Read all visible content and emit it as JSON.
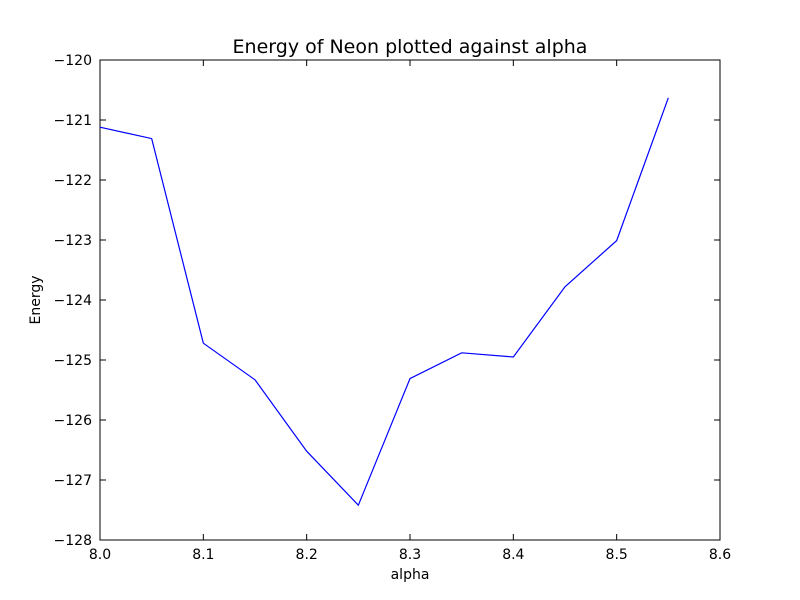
{
  "chart_data": {
    "type": "line",
    "title": "Energy of Neon plotted against alpha",
    "xlabel": "alpha",
    "ylabel": "Energy",
    "xlim": [
      8.0,
      8.6
    ],
    "ylim": [
      -128,
      -120
    ],
    "xticks": [
      8.0,
      8.1,
      8.2,
      8.3,
      8.4,
      8.5,
      8.6
    ],
    "xtick_labels": [
      "8.0",
      "8.1",
      "8.2",
      "8.3",
      "8.4",
      "8.5",
      "8.6"
    ],
    "yticks": [
      -128,
      -127,
      -126,
      -125,
      -124,
      -123,
      -122,
      -121,
      -120
    ],
    "ytick_labels": [
      "−128",
      "−127",
      "−126",
      "−125",
      "−124",
      "−123",
      "−122",
      "−121",
      "−120"
    ],
    "grid": false,
    "series": [
      {
        "color": "#0000ff",
        "x": [
          8.0,
          8.05,
          8.1,
          8.15,
          8.2,
          8.25,
          8.3,
          8.35,
          8.4,
          8.45,
          8.5,
          8.55
        ],
        "y": [
          -121.12,
          -121.31,
          -124.72,
          -125.33,
          -126.52,
          -127.42,
          -125.31,
          -124.88,
          -124.95,
          -123.78,
          -123.01,
          -120.63
        ]
      }
    ]
  }
}
